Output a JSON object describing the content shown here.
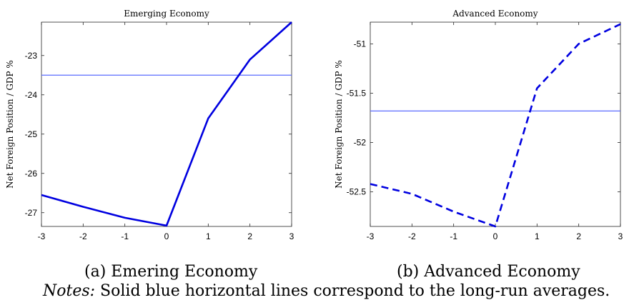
{
  "chart_data": [
    {
      "type": "line",
      "title": "Emerging Economy",
      "ylabel": "Net Foreign Position / GDP %",
      "x": [
        -3,
        -2,
        -1,
        0,
        1,
        2,
        3
      ],
      "xlim": [
        -3,
        3
      ],
      "ylim": [
        -27.35,
        -22.15
      ],
      "xticks": [
        "-3",
        "-2",
        "-1",
        "0",
        "1",
        "2",
        "3"
      ],
      "yticks": [
        -27,
        -26,
        -25,
        -24,
        -23
      ],
      "ytick_labels": [
        "-27",
        "-26",
        "-25",
        "-24",
        "-23"
      ],
      "series": [
        {
          "values": [
            -26.55,
            -26.85,
            -27.13,
            -27.33,
            -24.6,
            -23.1,
            -22.15
          ],
          "style": "solid",
          "color": "#0000e0"
        }
      ],
      "hline": {
        "y": -23.5,
        "color": "#5a6bff"
      },
      "grid": false
    },
    {
      "type": "line",
      "title": "Advanced Economy",
      "ylabel": "Net Foreign Position / GDP %",
      "x": [
        -3,
        -2,
        -1,
        0,
        1,
        2,
        3
      ],
      "xlim": [
        -3,
        3
      ],
      "ylim": [
        -52.85,
        -50.78
      ],
      "xticks": [
        "-3",
        "-2",
        "-1",
        "0",
        "1",
        "2",
        "3"
      ],
      "yticks": [
        -52.5,
        -52,
        -51.5,
        -51
      ],
      "ytick_labels": [
        "-52.5",
        "-52",
        "-51.5",
        "-51"
      ],
      "series": [
        {
          "values": [
            -52.42,
            -52.52,
            -52.7,
            -52.85,
            -51.45,
            -51.0,
            -50.8
          ],
          "style": "dashed",
          "color": "#0000e0"
        }
      ],
      "hline": {
        "y": -51.68,
        "color": "#5a6bff"
      },
      "grid": false
    }
  ],
  "captions": {
    "a": "(a) Emering Economy",
    "b": "(b) Advanced Economy"
  },
  "notes": {
    "label": "Notes:",
    "text": " Solid blue horizontal lines correspond to the long-run averages."
  }
}
